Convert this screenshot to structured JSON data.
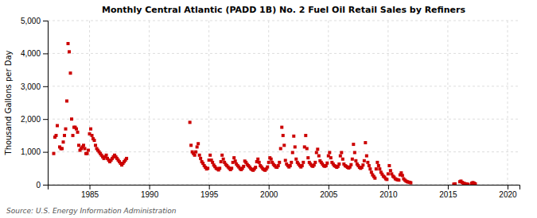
{
  "chart_data": {
    "type": "scatter",
    "title": "Monthly Central Atlantic (PADD 1B) No. 2 Fuel Oil Retail Sales by Refiners",
    "y_label": "Thousand Gallons per Day",
    "annotations": [
      "Source: U.S. Energy Information Administration"
    ],
    "color": "#cc0000",
    "marker": "square",
    "grid": true,
    "xlim": [
      1981.5,
      2021
    ],
    "ylim": [
      0,
      5000
    ],
    "xticks": [
      1985,
      1990,
      1995,
      2000,
      2005,
      2010,
      2015,
      2020
    ],
    "yticks": [
      0,
      {
        "value": 1000,
        "label": "1,000"
      },
      {
        "value": 2000,
        "label": "2,000"
      },
      {
        "value": 3000,
        "label": "3,000"
      },
      {
        "value": 4000,
        "label": "4,000"
      },
      {
        "value": 5000,
        "label": "5,000"
      }
    ],
    "x": [
      1982.0,
      1982.1,
      1982.2,
      1982.3,
      1982.5,
      1982.6,
      1982.7,
      1982.8,
      1982.9,
      1983.0,
      1983.1,
      1983.2,
      1983.3,
      1983.4,
      1983.5,
      1983.6,
      1983.7,
      1983.8,
      1983.9,
      1984.0,
      1984.1,
      1984.2,
      1984.3,
      1984.4,
      1984.5,
      1984.6,
      1984.7,
      1984.8,
      1984.9,
      1985.0,
      1985.1,
      1985.2,
      1985.3,
      1985.4,
      1985.5,
      1985.6,
      1985.7,
      1985.8,
      1985.9,
      1986.0,
      1986.1,
      1986.2,
      1986.3,
      1986.4,
      1986.5,
      1986.6,
      1986.7,
      1986.8,
      1986.9,
      1987.0,
      1987.1,
      1987.2,
      1987.3,
      1987.4,
      1987.5,
      1987.6,
      1987.7,
      1987.8,
      1987.9,
      1988.0,
      1988.1,
      1993.4,
      1993.5,
      1993.6,
      1993.7,
      1993.8,
      1993.9,
      1994.0,
      1994.1,
      1994.2,
      1994.3,
      1994.4,
      1994.5,
      1994.6,
      1994.7,
      1994.8,
      1994.9,
      1995.0,
      1995.1,
      1995.2,
      1995.3,
      1995.4,
      1995.5,
      1995.6,
      1995.7,
      1995.8,
      1995.9,
      1996.0,
      1996.1,
      1996.2,
      1996.3,
      1996.4,
      1996.5,
      1996.6,
      1996.7,
      1996.8,
      1996.9,
      1997.0,
      1997.1,
      1997.2,
      1997.3,
      1997.4,
      1997.5,
      1997.6,
      1997.7,
      1997.8,
      1997.9,
      1998.0,
      1998.1,
      1998.2,
      1998.3,
      1998.4,
      1998.5,
      1998.6,
      1998.7,
      1998.8,
      1998.9,
      1999.0,
      1999.1,
      1999.2,
      1999.3,
      1999.4,
      1999.5,
      1999.6,
      1999.7,
      1999.8,
      1999.9,
      2000.0,
      2000.1,
      2000.2,
      2000.3,
      2000.4,
      2000.5,
      2000.6,
      2000.7,
      2000.8,
      2000.9,
      2001.0,
      2001.1,
      2001.2,
      2001.3,
      2001.4,
      2001.5,
      2001.6,
      2001.7,
      2001.8,
      2001.9,
      2002.0,
      2002.1,
      2002.2,
      2002.3,
      2002.4,
      2002.5,
      2002.6,
      2002.7,
      2002.8,
      2002.9,
      2003.0,
      2003.1,
      2003.2,
      2003.3,
      2003.4,
      2003.5,
      2003.6,
      2003.7,
      2003.8,
      2003.9,
      2004.0,
      2004.1,
      2004.2,
      2004.3,
      2004.4,
      2004.5,
      2004.6,
      2004.7,
      2004.8,
      2004.9,
      2005.0,
      2005.1,
      2005.2,
      2005.3,
      2005.4,
      2005.5,
      2005.6,
      2005.7,
      2005.8,
      2005.9,
      2006.0,
      2006.1,
      2006.2,
      2006.3,
      2006.4,
      2006.5,
      2006.6,
      2006.7,
      2006.8,
      2006.9,
      2007.0,
      2007.1,
      2007.2,
      2007.3,
      2007.4,
      2007.5,
      2007.6,
      2007.7,
      2007.8,
      2007.9,
      2008.0,
      2008.1,
      2008.2,
      2008.3,
      2008.4,
      2008.5,
      2008.6,
      2008.7,
      2008.8,
      2008.9,
      2009.0,
      2009.1,
      2009.2,
      2009.3,
      2009.4,
      2009.5,
      2009.6,
      2009.7,
      2009.8,
      2009.9,
      2010.0,
      2010.1,
      2010.2,
      2010.3,
      2010.4,
      2010.5,
      2010.6,
      2010.7,
      2010.8,
      2010.9,
      2011.0,
      2011.1,
      2011.2,
      2011.3,
      2011.4,
      2011.5,
      2011.6,
      2011.7,
      2011.8,
      2011.9,
      2015.5,
      2015.6,
      2016.0,
      2016.1,
      2016.2,
      2016.3,
      2016.4,
      2016.5,
      2016.6,
      2016.7,
      2017.0,
      2017.1,
      2017.2,
      2017.3
    ],
    "values": [
      950,
      1450,
      1500,
      1800,
      1150,
      1100,
      1100,
      1300,
      1500,
      1700,
      2550,
      4300,
      4050,
      3400,
      2000,
      1500,
      1750,
      1750,
      1700,
      1600,
      1200,
      1050,
      1100,
      1150,
      1200,
      1100,
      950,
      950,
      1050,
      1550,
      1700,
      1500,
      1400,
      1350,
      1200,
      1100,
      1050,
      1000,
      950,
      900,
      850,
      800,
      850,
      900,
      800,
      750,
      700,
      750,
      800,
      850,
      900,
      850,
      800,
      750,
      700,
      650,
      600,
      650,
      700,
      750,
      800,
      1900,
      1200,
      1000,
      950,
      900,
      1000,
      1150,
      1250,
      900,
      800,
      700,
      650,
      580,
      530,
      480,
      500,
      750,
      900,
      750,
      680,
      600,
      550,
      500,
      480,
      450,
      500,
      700,
      900,
      780,
      680,
      620,
      580,
      540,
      500,
      460,
      500,
      680,
      820,
      720,
      630,
      580,
      540,
      490,
      460,
      500,
      560,
      720,
      680,
      620,
      580,
      540,
      490,
      460,
      440,
      480,
      530,
      700,
      780,
      680,
      580,
      540,
      490,
      460,
      440,
      480,
      540,
      680,
      820,
      780,
      680,
      620,
      580,
      540,
      530,
      580,
      680,
      1100,
      1750,
      1500,
      1200,
      740,
      630,
      580,
      540,
      580,
      680,
      980,
      1480,
      1150,
      780,
      680,
      630,
      580,
      540,
      580,
      680,
      1150,
      1500,
      1100,
      820,
      680,
      630,
      580,
      560,
      600,
      680,
      980,
      1080,
      880,
      730,
      680,
      630,
      580,
      560,
      580,
      660,
      880,
      980,
      820,
      680,
      630,
      580,
      560,
      530,
      560,
      630,
      880,
      980,
      780,
      630,
      580,
      560,
      530,
      510,
      540,
      610,
      780,
      1230,
      980,
      730,
      630,
      580,
      530,
      500,
      530,
      600,
      730,
      1280,
      880,
      680,
      580,
      480,
      380,
      300,
      250,
      200,
      480,
      680,
      580,
      480,
      380,
      320,
      260,
      230,
      180,
      160,
      330,
      580,
      430,
      330,
      260,
      230,
      180,
      160,
      150,
      140,
      300,
      360,
      280,
      180,
      140,
      110,
      90,
      80,
      70,
      60,
      18,
      25,
      90,
      110,
      70,
      50,
      35,
      25,
      18,
      12,
      45,
      65,
      45,
      25
    ]
  }
}
